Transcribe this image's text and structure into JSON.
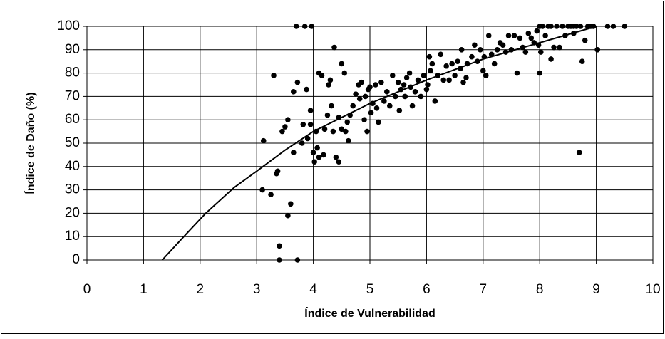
{
  "chart_data": {
    "type": "scatter",
    "xlabel": "Índice de Vulnerabilidad",
    "ylabel": "Índice de Daño (%)",
    "xlim": [
      0,
      10
    ],
    "ylim": [
      0,
      100
    ],
    "xticks": [
      0,
      1,
      2,
      3,
      4,
      5,
      6,
      7,
      8,
      9,
      10
    ],
    "yticks": [
      0,
      10,
      20,
      30,
      40,
      50,
      60,
      70,
      80,
      90,
      100
    ],
    "grid": true,
    "series": [
      {
        "color": "#000000",
        "marker": "dot",
        "x": [
          3.1,
          3.12,
          3.25,
          3.3,
          3.35,
          3.37,
          3.4,
          3.4,
          3.45,
          3.5,
          3.55,
          3.55,
          3.6,
          3.65,
          3.65,
          3.7,
          3.72,
          3.72,
          3.8,
          3.82,
          3.85,
          3.88,
          3.9,
          3.95,
          3.95,
          3.97,
          4.0,
          4.02,
          4.05,
          4.07,
          4.1,
          4.1,
          4.15,
          4.18,
          4.2,
          4.25,
          4.27,
          4.3,
          4.32,
          4.35,
          4.37,
          4.4,
          4.45,
          4.45,
          4.5,
          4.5,
          4.55,
          4.57,
          4.6,
          4.62,
          4.65,
          4.7,
          4.75,
          4.8,
          4.82,
          4.85,
          4.9,
          4.92,
          4.95,
          4.97,
          5.0,
          5.02,
          5.05,
          5.1,
          5.12,
          5.15,
          5.2,
          5.25,
          5.3,
          5.35,
          5.4,
          5.45,
          5.5,
          5.52,
          5.55,
          5.6,
          5.62,
          5.65,
          5.7,
          5.72,
          5.75,
          5.8,
          5.85,
          5.9,
          5.95,
          6.0,
          6.02,
          6.05,
          6.07,
          6.1,
          6.15,
          6.2,
          6.25,
          6.3,
          6.35,
          6.4,
          6.45,
          6.5,
          6.55,
          6.6,
          6.62,
          6.65,
          6.7,
          6.72,
          6.8,
          6.85,
          6.9,
          6.95,
          7.0,
          7.02,
          7.05,
          7.1,
          7.15,
          7.2,
          7.25,
          7.3,
          7.35,
          7.4,
          7.45,
          7.5,
          7.55,
          7.6,
          7.65,
          7.7,
          7.75,
          7.8,
          7.85,
          7.9,
          7.95,
          8.0,
          8.02,
          8.05,
          8.1,
          8.15,
          8.2,
          8.25,
          8.3,
          8.35,
          8.4,
          8.45,
          8.5,
          8.55,
          8.6,
          8.65,
          8.7,
          8.72,
          8.75,
          8.8,
          8.85,
          8.9,
          8.95,
          9.02,
          9.2,
          9.3,
          9.5,
          8.6,
          8.2,
          8.0,
          7.98
        ],
        "values": [
          30,
          51,
          28,
          79,
          37,
          38,
          6,
          0,
          55,
          57,
          60,
          19,
          24,
          46,
          72,
          100,
          76,
          0,
          50,
          58,
          100,
          73,
          52,
          58,
          64,
          100,
          46,
          42,
          55,
          48,
          44,
          80,
          79,
          45,
          56,
          62,
          75,
          77,
          66,
          55,
          91,
          44,
          42,
          61,
          84,
          56,
          80,
          55,
          59,
          51,
          62,
          66,
          71,
          75,
          69,
          76,
          60,
          70,
          55,
          73,
          74,
          63,
          67,
          75,
          65,
          59,
          76,
          68,
          72,
          66,
          79,
          70,
          76,
          64,
          73,
          75,
          70,
          78,
          80,
          74,
          66,
          72,
          77,
          70,
          79,
          73,
          75,
          87,
          81,
          84,
          68,
          79,
          88,
          77,
          83,
          77,
          84,
          79,
          85,
          82,
          90,
          76,
          78,
          84,
          87,
          92,
          85,
          90,
          81,
          87,
          79,
          96,
          88,
          84,
          90,
          93,
          92,
          89,
          96,
          90,
          96,
          80,
          95,
          91,
          89,
          97,
          95,
          93,
          98,
          80,
          89,
          100,
          96,
          100,
          86,
          91,
          100,
          91,
          100,
          96,
          100,
          100,
          97,
          100,
          46,
          100,
          85,
          94,
          100,
          100,
          100,
          90,
          100,
          100,
          100,
          100,
          100,
          100,
          92
        ]
      },
      {
        "color": "#000000",
        "marker": "line",
        "x": [
          1.33,
          1.75,
          2.1,
          2.6,
          3,
          3.5,
          4,
          5,
          6,
          7,
          8,
          9
        ],
        "values": [
          0,
          11,
          20,
          31,
          38,
          47,
          55,
          67,
          77,
          86,
          93,
          100
        ]
      }
    ]
  }
}
